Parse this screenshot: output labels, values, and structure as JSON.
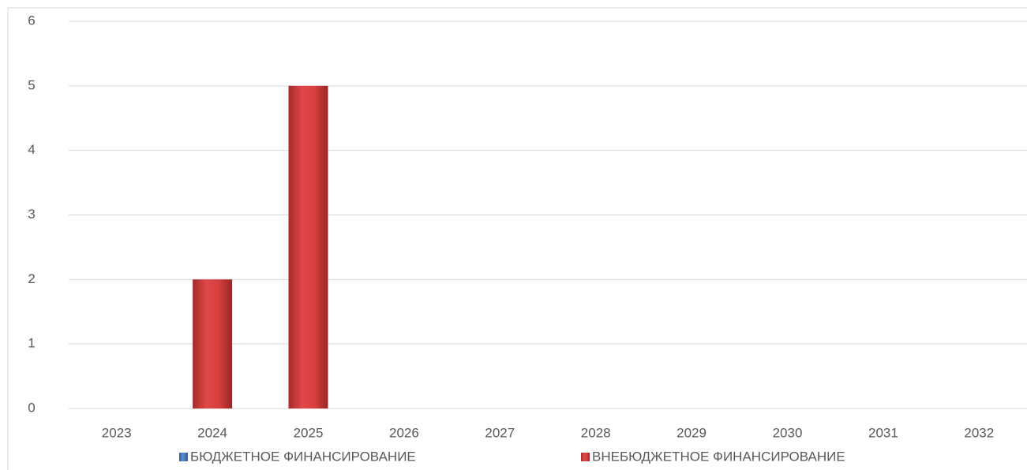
{
  "chart_data": {
    "type": "bar",
    "categories": [
      "2023",
      "2024",
      "2025",
      "2026",
      "2027",
      "2028",
      "2029",
      "2030",
      "2031",
      "2032"
    ],
    "series": [
      {
        "name": "БЮДЖЕТНОЕ ФИНАНСИРОВАНИЕ",
        "color": "#4a7ebb",
        "values": [
          0,
          0,
          0,
          0,
          0,
          0,
          0,
          0,
          0,
          0
        ]
      },
      {
        "name": "ВНЕБЮДЖЕТНОЕ ФИНАНСИРОВАНИЕ",
        "color": "#d23c3c",
        "values": [
          0,
          2,
          5,
          0,
          0,
          0,
          0,
          0,
          0,
          0
        ]
      }
    ],
    "ylim": [
      0,
      6
    ],
    "yticks": [
      0,
      1,
      2,
      3,
      4,
      5,
      6
    ],
    "grid": true,
    "legend": "bottom"
  }
}
